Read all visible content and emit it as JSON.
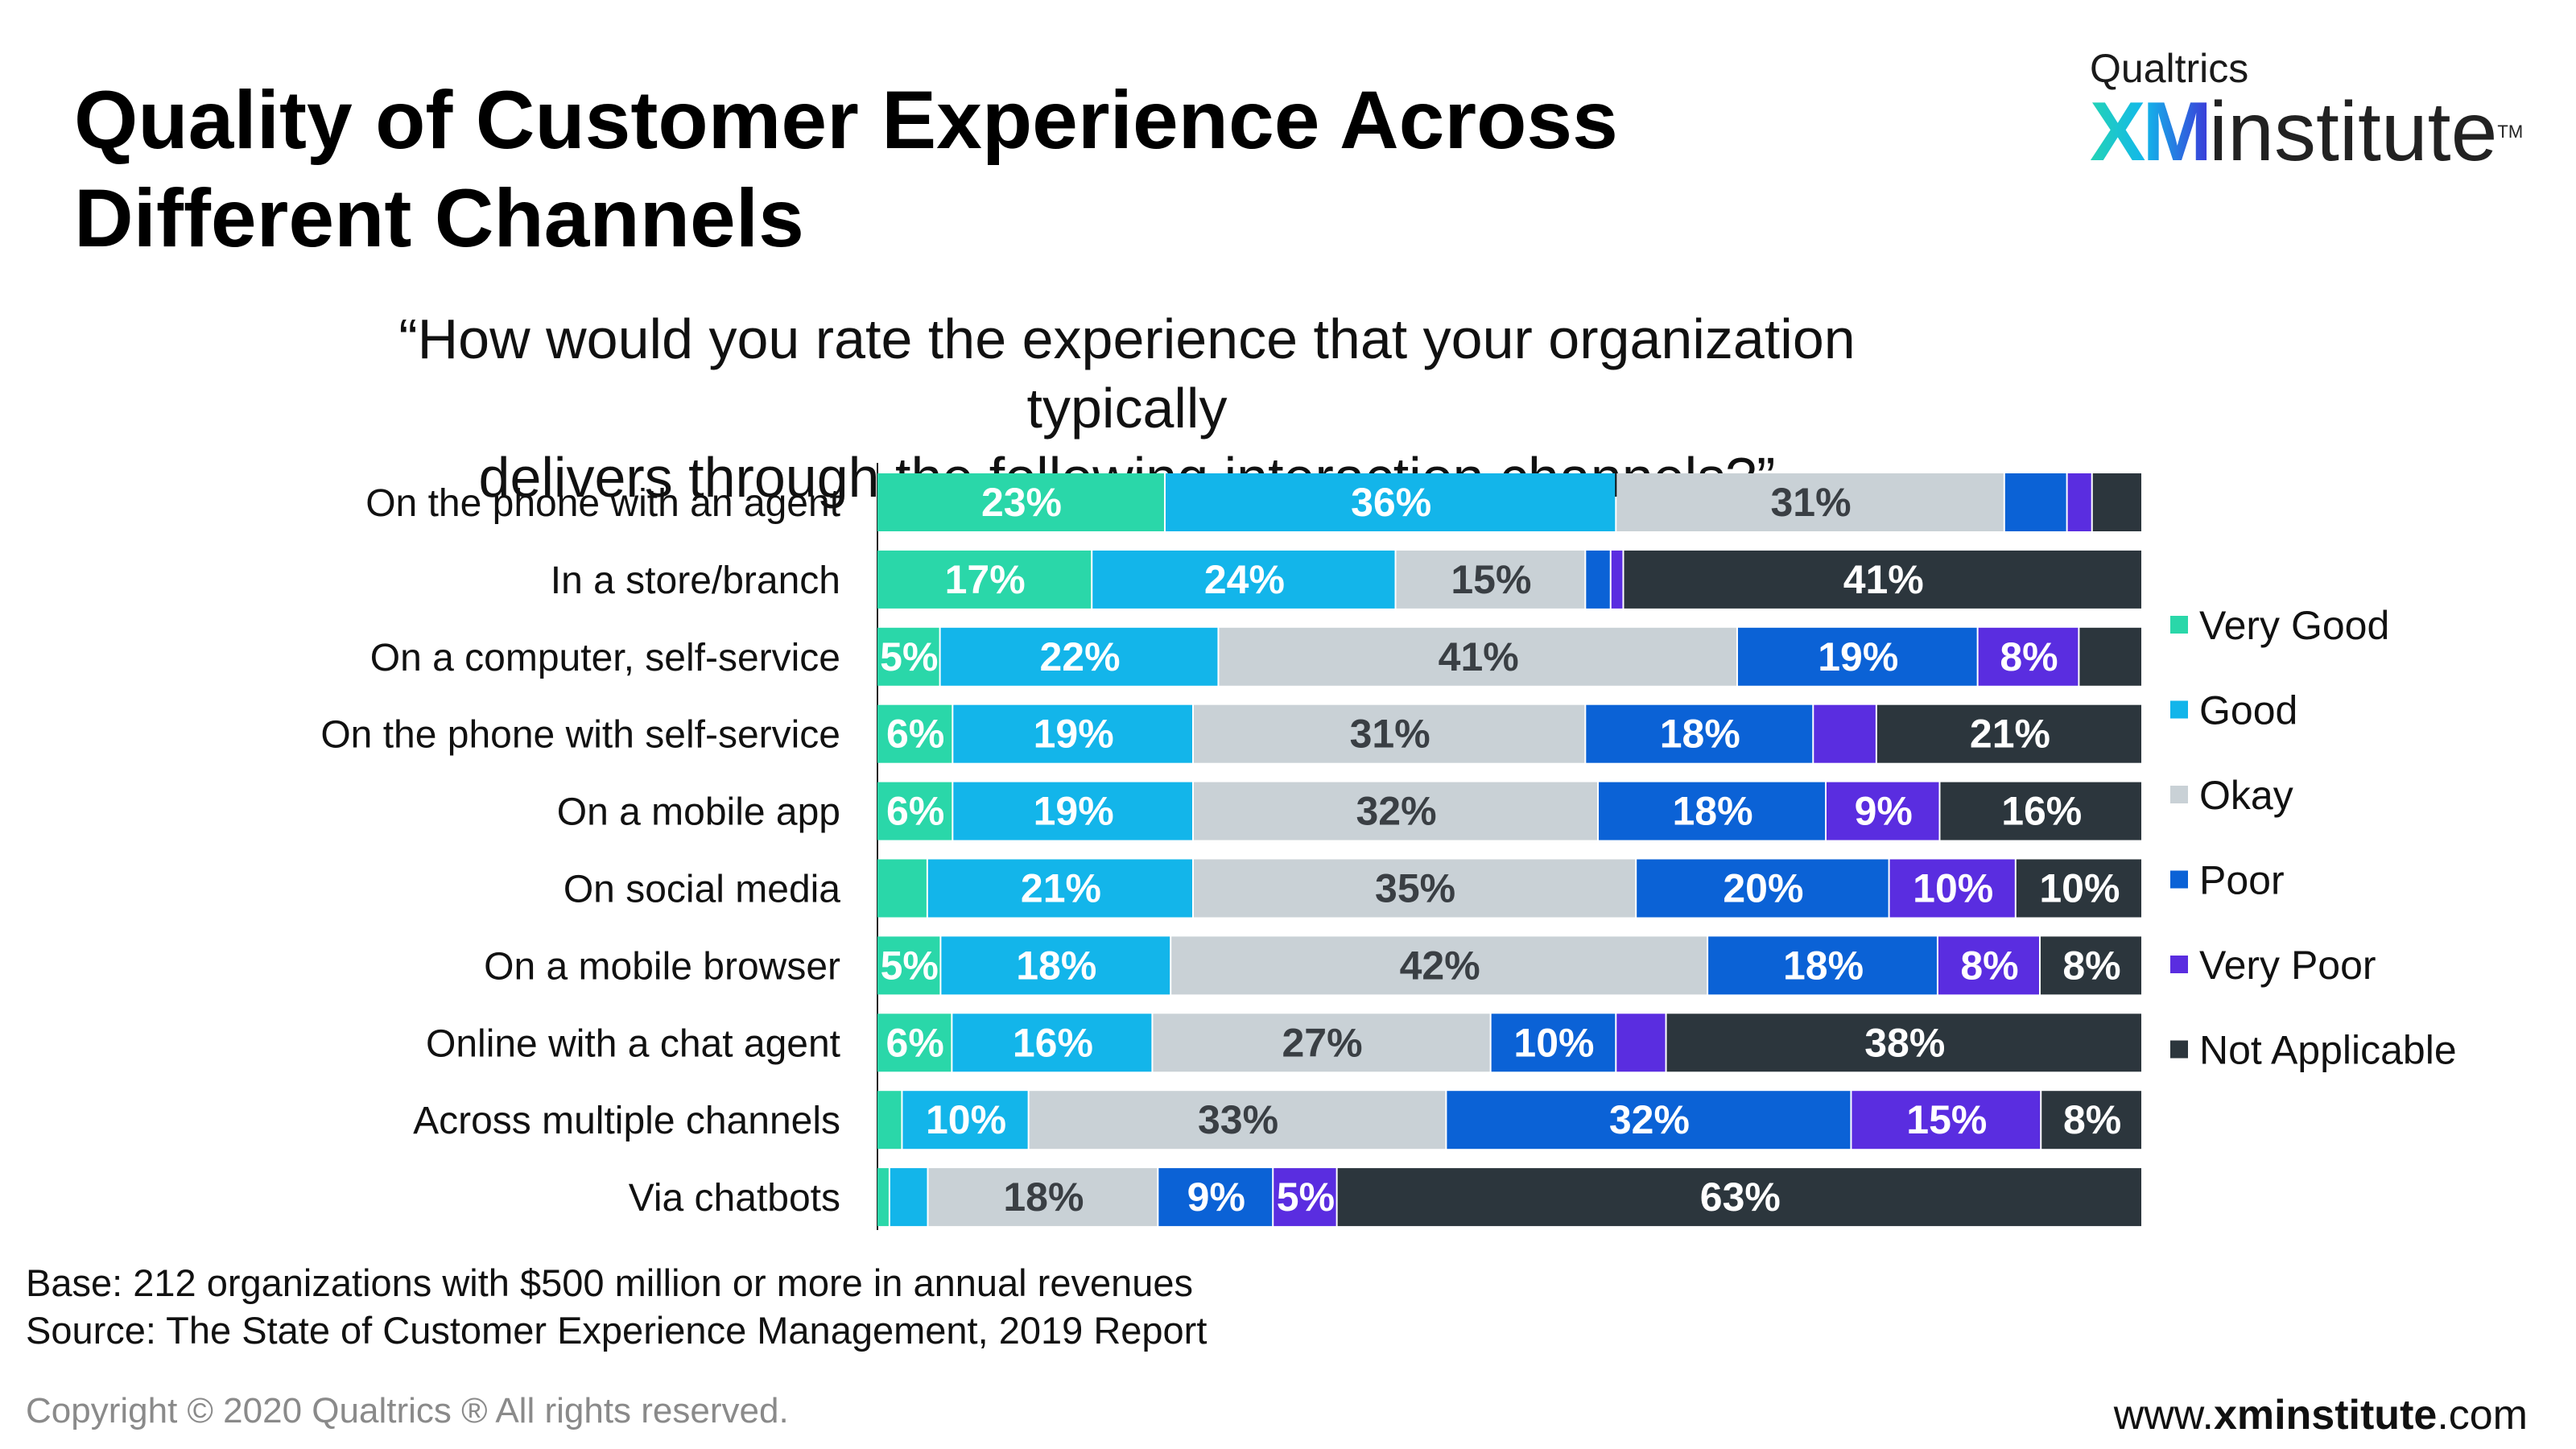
{
  "header": {
    "title_line1": "Quality of Customer Experience Across",
    "title_line2": "Different Channels",
    "logo_brand": "Qualtrics",
    "logo_xm": "XM",
    "logo_institute": "institute",
    "logo_tm": "TM"
  },
  "question": {
    "line1": "“How would you rate the experience that your organization typically",
    "line2": "delivers through the following interaction channels?”"
  },
  "colors": {
    "very_good": "#2ad7a9",
    "good": "#13b5ea",
    "okay": "#c9d1d6",
    "poor": "#0b62d6",
    "very_poor": "#5a2de0",
    "not_applicable": "#2c363d"
  },
  "chart_data": {
    "type": "bar",
    "orientation": "horizontal",
    "stacked": "100%",
    "title": "Quality of Customer Experience Across Different Channels",
    "xlabel": "",
    "ylabel": "",
    "xlim": [
      0,
      100
    ],
    "categories": [
      "On the phone with an agent",
      "In a store/branch",
      "On a computer, self-service",
      "On the phone with self-service",
      "On a mobile app",
      "On social media",
      "On a mobile browser",
      "Online with a chat agent",
      "Across multiple channels",
      "Via chatbots"
    ],
    "series": [
      {
        "name": "Very Good",
        "color": "#2ad7a9",
        "values": [
          23,
          17,
          5,
          6,
          6,
          4,
          5,
          6,
          2,
          1
        ],
        "labels": [
          "23%",
          "17%",
          "5%",
          "6%",
          "6%",
          "",
          "5%",
          "6%",
          "",
          ""
        ]
      },
      {
        "name": "Good",
        "color": "#13b5ea",
        "values": [
          36,
          24,
          22,
          19,
          19,
          21,
          18,
          16,
          10,
          3
        ],
        "labels": [
          "36%",
          "24%",
          "22%",
          "19%",
          "19%",
          "21%",
          "18%",
          "16%",
          "10%",
          ""
        ]
      },
      {
        "name": "Okay",
        "color": "#c9d1d6",
        "values": [
          31,
          15,
          41,
          31,
          32,
          35,
          42,
          27,
          33,
          18
        ],
        "labels": [
          "31%",
          "15%",
          "41%",
          "31%",
          "32%",
          "35%",
          "42%",
          "27%",
          "33%",
          "18%"
        ]
      },
      {
        "name": "Poor",
        "color": "#0b62d6",
        "values": [
          5,
          2,
          19,
          18,
          18,
          20,
          18,
          10,
          32,
          9
        ],
        "labels": [
          "",
          "",
          "19%",
          "18%",
          "18%",
          "20%",
          "18%",
          "10%",
          "32%",
          "9%"
        ]
      },
      {
        "name": "Very Poor",
        "color": "#5a2de0",
        "values": [
          2,
          1,
          8,
          5,
          9,
          10,
          8,
          4,
          15,
          5
        ],
        "labels": [
          "",
          "",
          "8%",
          "",
          "9%",
          "10%",
          "8%",
          "",
          "15%",
          "5%"
        ]
      },
      {
        "name": "Not Applicable",
        "color": "#2c363d",
        "values": [
          4,
          41,
          5,
          21,
          16,
          10,
          8,
          38,
          8,
          63
        ],
        "labels": [
          "",
          "41%",
          "",
          "21%",
          "16%",
          "10%",
          "8%",
          "38%",
          "8%",
          "63%"
        ]
      }
    ],
    "legend": [
      "Very Good",
      "Good",
      "Okay",
      "Poor",
      "Very Poor",
      "Not Applicable"
    ],
    "legend_position": "right"
  },
  "footer": {
    "base": "Base: 212 organizations with $500 million or more in annual revenues",
    "source": "Source: The State of Customer Experience Management, 2019 Report",
    "copyright": "Copyright © 2020 Qualtrics ® All rights reserved.",
    "url_prefix": "www.",
    "url_domain": "xminstitute",
    "url_suffix": ".com"
  }
}
